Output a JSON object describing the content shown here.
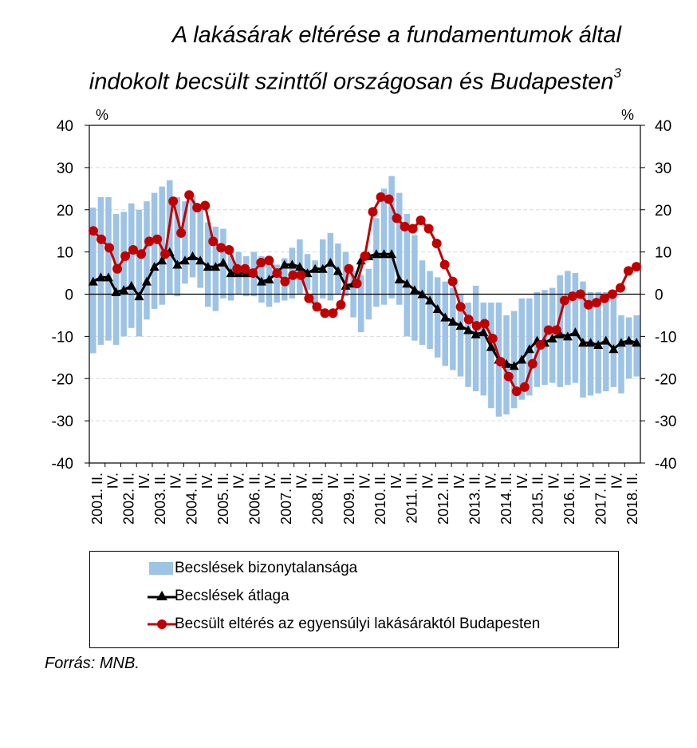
{
  "title_line1": "A lakásárak eltérése a fundamentumok által",
  "title_line2": "indokolt becsült szinttől országosan és Budapesten",
  "title_superscript": "3",
  "source": "Forrás: MNB.",
  "chart_data": {
    "type": "bar",
    "ylabel_left": "%",
    "ylabel_right": "%",
    "ylim": [
      -40,
      40
    ],
    "yticks": [
      40,
      30,
      20,
      10,
      0,
      -10,
      -20,
      -30,
      -40
    ],
    "grid": true,
    "legend_position": "bottom",
    "x_tick_labels": [
      "2001. II.",
      "IV.",
      "2002. II.",
      "IV.",
      "2003. II.",
      "IV.",
      "2004. II.",
      "IV.",
      "2005. II.",
      "IV.",
      "2006. II.",
      "IV.",
      "2007. II.",
      "IV.",
      "2008. II.",
      "IV.",
      "2009. II.",
      "IV.",
      "2010. II.",
      "IV.",
      "2011. II.",
      "IV.",
      "2012. II.",
      "IV.",
      "2013. II.",
      "IV.",
      "2014. II.",
      "IV.",
      "2015. II.",
      "IV.",
      "2016. II.",
      "IV.",
      "2017. II.",
      "IV.",
      "2018. II."
    ],
    "uncertainty_upper": [
      20.5,
      23,
      23,
      19,
      19.5,
      21.5,
      20,
      22,
      24,
      25.5,
      27,
      23,
      22,
      23.5,
      20.5,
      17,
      16,
      15.5,
      11,
      10,
      9,
      10,
      9,
      8,
      7,
      8.5,
      11,
      13,
      9.5,
      8,
      13,
      14.5,
      12,
      10,
      5.5,
      4.5,
      6,
      18,
      25,
      28,
      24,
      19,
      14,
      8,
      5.5,
      4,
      3,
      1.5,
      0,
      -2,
      2,
      -2,
      -2,
      -2,
      -5,
      -4,
      -1,
      -1,
      0.5,
      1,
      1.5,
      4.5,
      5.5,
      5,
      3,
      0.5,
      0.5,
      0.5,
      -1,
      -5,
      -5.5,
      -5
    ],
    "uncertainty_lower": [
      -14,
      -12,
      -11,
      -12,
      -10,
      -8,
      -10,
      -6,
      -3.5,
      -2.5,
      0,
      -0.5,
      2.5,
      4,
      1.5,
      -3,
      -4,
      -1,
      -1.5,
      0,
      -0.5,
      -0.5,
      -2,
      -3,
      -2,
      -1.5,
      -1,
      0,
      1,
      -2,
      -1,
      -1.5,
      0,
      -0.5,
      -5.5,
      -9,
      -6,
      -3,
      -2.5,
      -1,
      -2.5,
      -10,
      -11,
      -12,
      -13,
      -15,
      -17,
      -18,
      -19.5,
      -22,
      -23,
      -24,
      -27,
      -29,
      -28.5,
      -27,
      -25,
      -24,
      -22,
      -21.5,
      -21,
      -22,
      -21.5,
      -21,
      -24.5,
      -24,
      -23.5,
      -23,
      -22,
      -23.5,
      -20,
      -19.5
    ],
    "series": [
      {
        "name": "Becslések átlaga",
        "color": "#000000",
        "marker": "triangle",
        "values": [
          3,
          4,
          4,
          0.5,
          1,
          2,
          -0.5,
          3,
          6.5,
          8,
          10,
          7,
          8,
          9,
          8,
          6.5,
          6.5,
          7.5,
          5,
          5,
          5,
          5,
          3,
          3.5,
          5,
          7,
          7,
          6.5,
          5,
          6,
          6,
          7.5,
          5.5,
          2,
          2.5,
          8,
          9,
          9.5,
          9.5,
          9.5,
          3.5,
          2.5,
          1,
          0,
          -1.5,
          -3.5,
          -5.5,
          -6.5,
          -7.5,
          -8.5,
          -9.5,
          -9,
          -12.5,
          -15.5,
          -16.5,
          -17,
          -15.5,
          -13,
          -11,
          -11.5,
          -10.5,
          -9.5,
          -10,
          -9,
          -11.5,
          -11.5,
          -12,
          -11,
          -13,
          -11.5,
          -11,
          -11.5
        ]
      },
      {
        "name": "Becsült eltérés az egyensúlyi lakásáraktól Budapesten",
        "color": "#c00000",
        "marker": "circle",
        "values": [
          15,
          13,
          11,
          6,
          9,
          10.5,
          9.5,
          12.5,
          13,
          9.5,
          22,
          14.5,
          23.5,
          20.5,
          21,
          12.5,
          11,
          10.5,
          6,
          6,
          5,
          7.5,
          8,
          5,
          3,
          4.5,
          4.5,
          -1,
          -3,
          -4.5,
          -4.5,
          -2.5,
          6,
          2.5,
          9,
          19.5,
          23,
          22.5,
          18,
          16,
          15.5,
          17.5,
          15.5,
          12,
          7,
          3,
          -3,
          -6,
          -7.5,
          -7,
          -10.5,
          -16,
          -19.5,
          -23,
          -22,
          -16.5,
          -12,
          -8.5,
          -8.5,
          -1.5,
          -0.5,
          0,
          -2.5,
          -2,
          -1,
          0,
          1.5,
          5.5,
          6.5
        ]
      }
    ],
    "legend": {
      "band": "Becslések bizonytalansága",
      "avg": "Becslések átlaga",
      "budapest": "Becsült eltérés az egyensúlyi lakásáraktól Budapesten"
    },
    "colors": {
      "band": "#9dc3e6",
      "avg": "#000000",
      "budapest": "#c00000",
      "grid": "#d9d9d9"
    }
  }
}
